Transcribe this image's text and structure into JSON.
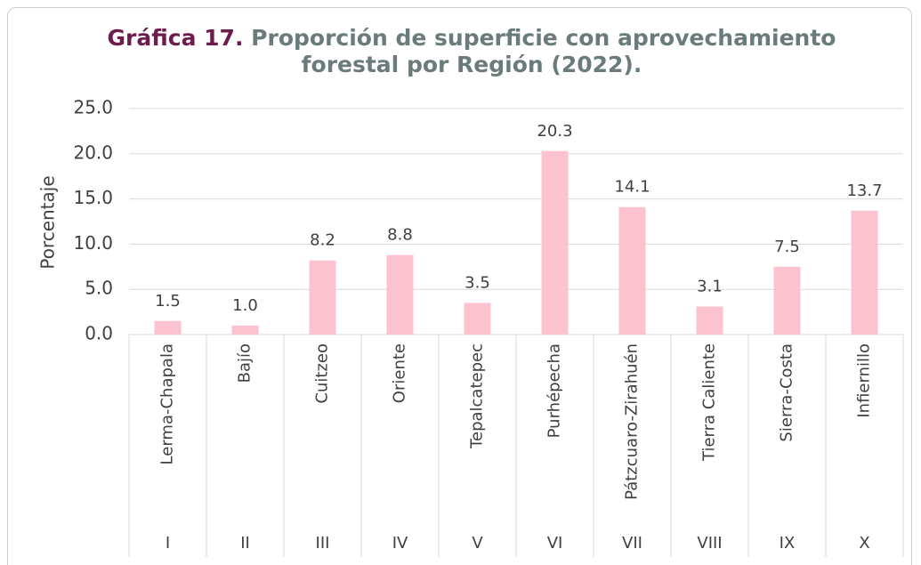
{
  "chart_data": {
    "type": "bar",
    "title_label": "Gráfica 17.",
    "title": "Proporción de superficie con aprovechamiento forestal por Región (2022).",
    "y_axis_label": "Porcentaje",
    "categories": [
      "Lerma-Chapala",
      "Bajío",
      "Cuitzeo",
      "Oriente",
      "Tepalcatepec",
      "Purhépecha",
      "Pátzcuaro-Zirahuén",
      "Tierra Caliente",
      "Sierra-Costa",
      "Infiernillo"
    ],
    "category_codes": [
      "I",
      "II",
      "III",
      "IV",
      "V",
      "VI",
      "VII",
      "VIII",
      "IX",
      "X"
    ],
    "values": [
      1.5,
      1.0,
      8.2,
      8.8,
      3.5,
      20.3,
      14.1,
      3.1,
      7.5,
      13.7
    ],
    "value_labels": [
      "1.5",
      "1.0",
      "8.2",
      "8.8",
      "3.5",
      "20.3",
      "14.1",
      "3.1",
      "7.5",
      "13.7"
    ],
    "color": "#fcc2cf",
    "ylim": [
      0,
      25
    ],
    "yticks": [
      {
        "value": 0,
        "label": "0.0"
      },
      {
        "value": 5,
        "label": "5.0"
      },
      {
        "value": 10,
        "label": "10.0"
      },
      {
        "value": 15,
        "label": "15.0"
      },
      {
        "value": 20,
        "label": "20.0"
      },
      {
        "value": 25,
        "label": "25.0"
      }
    ],
    "grid": true
  }
}
